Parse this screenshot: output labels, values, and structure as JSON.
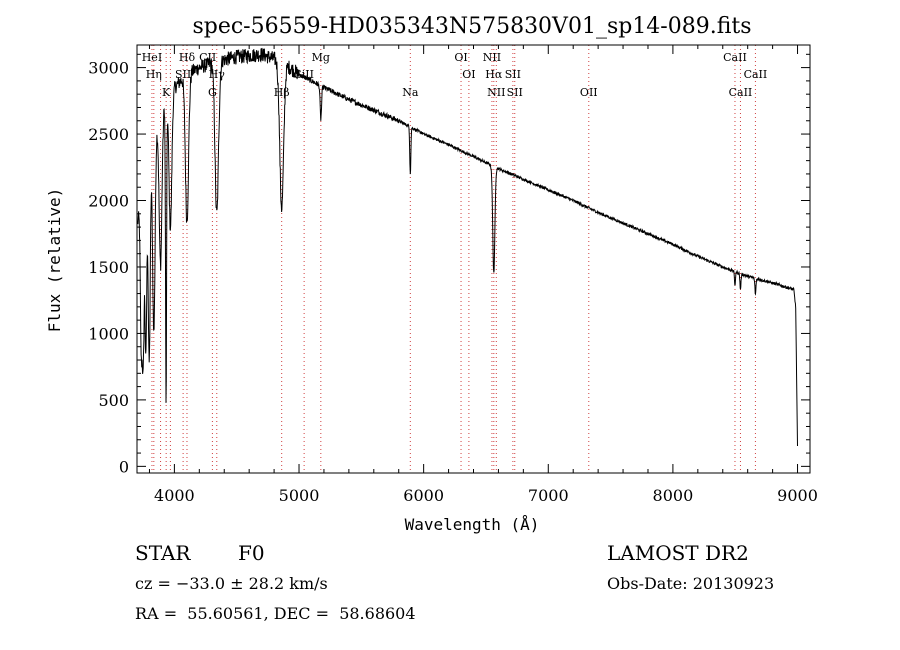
{
  "chart_data": {
    "type": "line",
    "title": "spec-56559-HD035343N575830V01_sp14-089.fits",
    "xlabel": "Wavelength (Å)",
    "ylabel": "Flux (relative)",
    "xlim": [
      3700,
      9100
    ],
    "ylim": [
      -50,
      3170
    ],
    "xticks": [
      4000,
      5000,
      6000,
      7000,
      8000,
      9000
    ],
    "yticks": [
      0,
      500,
      1000,
      1500,
      2000,
      2500,
      3000
    ],
    "continuum": [
      [
        3700,
        1800
      ],
      [
        3800,
        2400
      ],
      [
        3900,
        2700
      ],
      [
        4000,
        2850
      ],
      [
        4100,
        2950
      ],
      [
        4200,
        3000
      ],
      [
        4350,
        3050
      ],
      [
        4500,
        3080
      ],
      [
        4700,
        3100
      ],
      [
        4850,
        3050
      ],
      [
        5000,
        2950
      ],
      [
        5200,
        2850
      ],
      [
        5400,
        2760
      ],
      [
        5600,
        2680
      ],
      [
        5800,
        2600
      ],
      [
        6000,
        2500
      ],
      [
        6200,
        2420
      ],
      [
        6400,
        2330
      ],
      [
        6600,
        2240
      ],
      [
        6800,
        2160
      ],
      [
        7000,
        2080
      ],
      [
        7200,
        2000
      ],
      [
        7400,
        1910
      ],
      [
        7600,
        1830
      ],
      [
        7800,
        1750
      ],
      [
        8000,
        1670
      ],
      [
        8200,
        1580
      ],
      [
        8400,
        1500
      ],
      [
        8600,
        1430
      ],
      [
        8800,
        1380
      ],
      [
        8970,
        1330
      ],
      [
        8985,
        1200
      ],
      [
        9000,
        150
      ]
    ],
    "absorption_features": [
      [
        3734,
        1100,
        10
      ],
      [
        3750,
        1300,
        10
      ],
      [
        3771,
        1400,
        10
      ],
      [
        3798,
        1600,
        12
      ],
      [
        3835,
        1500,
        14
      ],
      [
        3889,
        1150,
        16
      ],
      [
        3933,
        2300,
        6
      ],
      [
        3968,
        1000,
        16
      ],
      [
        4101,
        1100,
        18
      ],
      [
        4340,
        1150,
        20
      ],
      [
        4861,
        1100,
        22
      ],
      [
        5175,
        250,
        8
      ],
      [
        5893,
        350,
        6
      ],
      [
        6563,
        800,
        12
      ],
      [
        8498,
        100,
        6
      ],
      [
        8542,
        120,
        6
      ],
      [
        8662,
        120,
        6
      ]
    ],
    "line_labels": [
      {
        "text": "HeI",
        "x": 3820,
        "row": 0
      },
      {
        "text": "Hδ",
        "x": 4101,
        "row": 0
      },
      {
        "text": "CII",
        "x": 4267,
        "row": 0
      },
      {
        "text": "Mg",
        "x": 5175,
        "row": 0
      },
      {
        "text": "OI",
        "x": 6300,
        "row": 0
      },
      {
        "text": "NII",
        "x": 6548,
        "row": 0
      },
      {
        "text": "CaII",
        "x": 8498,
        "row": 0
      },
      {
        "text": "Hη",
        "x": 3835,
        "row": 1
      },
      {
        "text": "SII",
        "x": 4070,
        "row": 1
      },
      {
        "text": "Hγ",
        "x": 4340,
        "row": 1
      },
      {
        "text": "SiII",
        "x": 5041,
        "row": 1
      },
      {
        "text": "OI",
        "x": 6363,
        "row": 1
      },
      {
        "text": "Hα",
        "x": 6563,
        "row": 1
      },
      {
        "text": "SII",
        "x": 6716,
        "row": 1
      },
      {
        "text": "CaII",
        "x": 8662,
        "row": 1
      },
      {
        "text": "K",
        "x": 3934,
        "row": 2
      },
      {
        "text": "G",
        "x": 4305,
        "row": 2
      },
      {
        "text": "Hβ",
        "x": 4861,
        "row": 2
      },
      {
        "text": "Na",
        "x": 5893,
        "row": 2
      },
      {
        "text": "NII",
        "x": 6583,
        "row": 2
      },
      {
        "text": "SII",
        "x": 6731,
        "row": 2
      },
      {
        "text": "OII",
        "x": 7325,
        "row": 2
      },
      {
        "text": "CaII",
        "x": 8542,
        "row": 2
      }
    ],
    "marker_lines": [
      3820,
      3835,
      3889,
      3934,
      3968,
      4070,
      4101,
      4305,
      4340,
      4861,
      5041,
      5175,
      5893,
      6300,
      6363,
      6548,
      6563,
      6583,
      6716,
      6731,
      7325,
      8498,
      8542,
      8662
    ]
  },
  "info": {
    "object_class": "STAR",
    "subclass": "F0",
    "survey": "LAMOST DR2",
    "cz": "cz = −33.0 ± 28.2 km/s",
    "obs_date": "Obs-Date: 20130923",
    "coords": "RA =  55.60561, DEC =  58.68604"
  }
}
